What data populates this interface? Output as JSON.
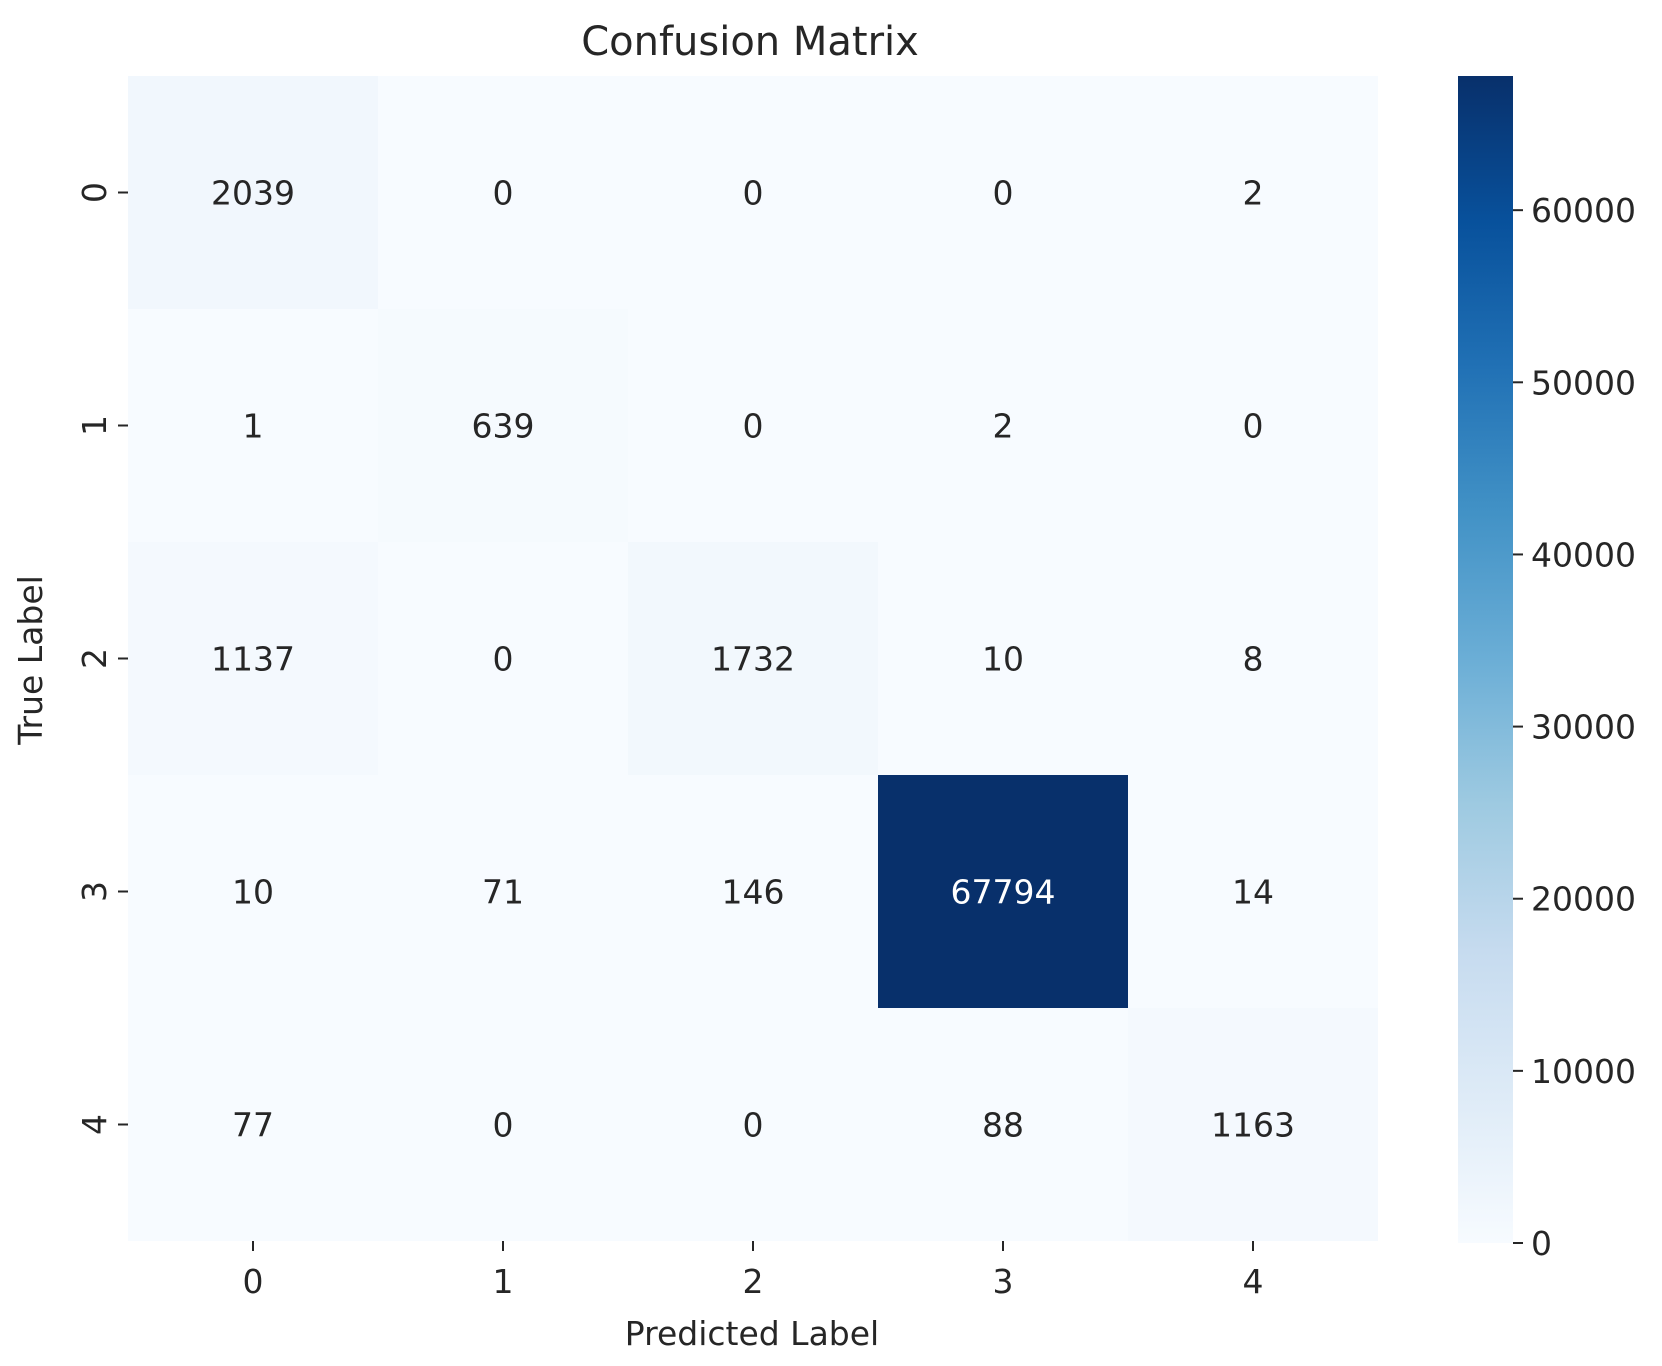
{
  "chart_data": {
    "type": "heatmap",
    "title": "Confusion Matrix",
    "xlabel": "Predicted Label",
    "ylabel": "True Label",
    "x_categories": [
      "0",
      "1",
      "2",
      "3",
      "4"
    ],
    "y_categories": [
      "0",
      "1",
      "2",
      "3",
      "4"
    ],
    "values": [
      [
        2039,
        0,
        0,
        0,
        2
      ],
      [
        1,
        639,
        0,
        2,
        0
      ],
      [
        1137,
        0,
        1732,
        10,
        8
      ],
      [
        10,
        71,
        146,
        67794,
        14
      ],
      [
        77,
        0,
        0,
        88,
        1163
      ]
    ],
    "colormap": "Blues",
    "color_low": "#f7fbff",
    "color_high": "#08306b",
    "colorbar": {
      "range": [
        0,
        67794
      ],
      "ticks": [
        0,
        10000,
        20000,
        30000,
        40000,
        50000,
        60000
      ],
      "tick_labels": [
        "0",
        "10000",
        "20000",
        "30000",
        "40000",
        "50000",
        "60000"
      ]
    },
    "grid": false,
    "legend": "colorbar-right"
  }
}
